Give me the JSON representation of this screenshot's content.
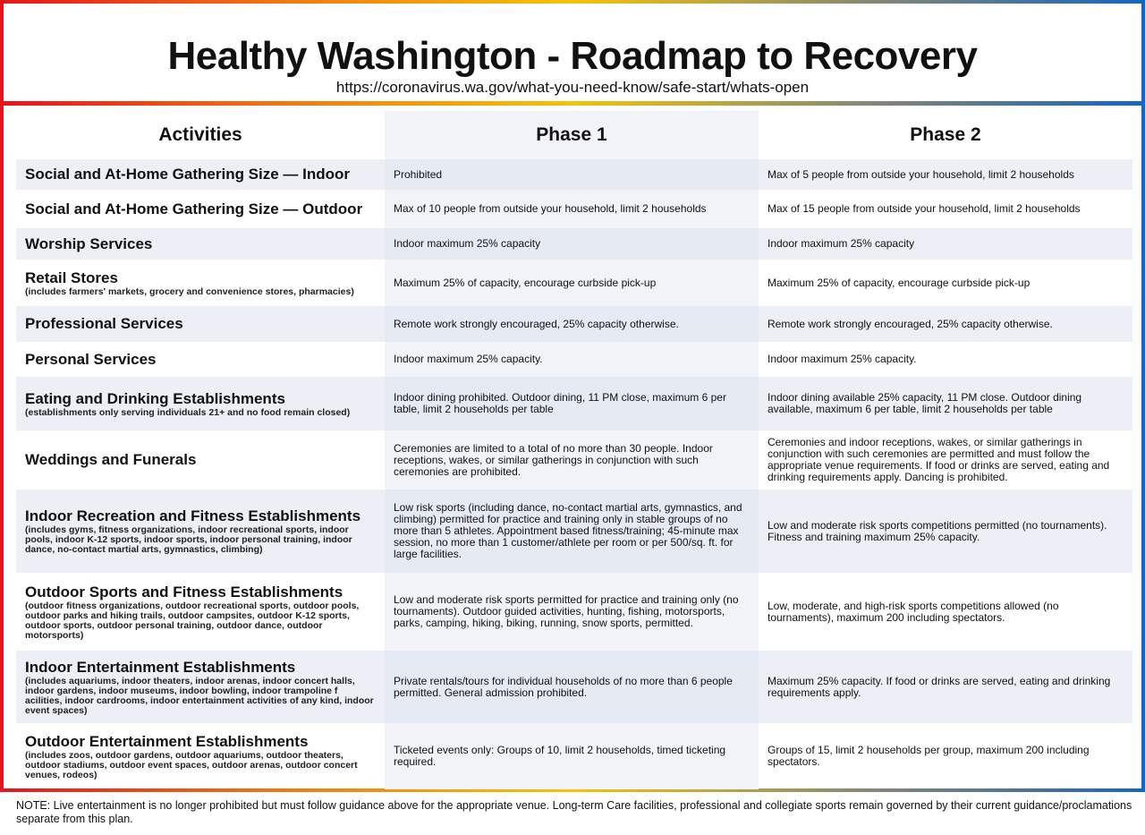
{
  "header": {
    "title": "Healthy Washington - Roadmap to Recovery",
    "url": "https://coronavirus.wa.gov/what-you-need-know/safe-start/whats-open"
  },
  "columns": [
    "Activities",
    "Phase 1",
    "Phase 2"
  ],
  "rows": [
    {
      "activity": "Social and At-Home Gathering Size — Indoor",
      "sub": "",
      "phase1": "Prohibited",
      "phase2": "Max of 5 people from outside your household, limit 2 households"
    },
    {
      "activity": "Social and At-Home Gathering Size — Outdoor",
      "sub": "",
      "phase1": "Max of 10 people from outside your household, limit 2 households",
      "phase2": "Max of 15 people from outside your household, limit 2 households"
    },
    {
      "activity": "Worship Services",
      "sub": "",
      "phase1": "Indoor maximum 25% capacity",
      "phase2": "Indoor maximum 25% capacity"
    },
    {
      "activity": "Retail Stores",
      "sub": "(includes farmers' markets, grocery and convenience stores, pharmacies)",
      "phase1": "Maximum 25% of capacity, encourage curbside pick-up",
      "phase2": "Maximum 25% of capacity, encourage curbside pick-up"
    },
    {
      "activity": "Professional Services",
      "sub": "",
      "phase1": "Remote work strongly encouraged, 25% capacity otherwise.",
      "phase2": "Remote work strongly encouraged, 25% capacity otherwise."
    },
    {
      "activity": "Personal Services",
      "sub": "",
      "phase1": "Indoor maximum 25% capacity.",
      "phase2": "Indoor maximum 25% capacity."
    },
    {
      "activity": "Eating and Drinking Establishments",
      "sub": "(establishments only serving individuals 21+ and no food remain closed)",
      "phase1": "Indoor dining prohibited. Outdoor dining, 11 PM close, maximum 6 per table, limit 2 households per table",
      "phase2": "Indoor dining available 25% capacity, 11 PM close. Outdoor dining available,  maximum 6 per table, limit 2 households per table"
    },
    {
      "activity": "Weddings and Funerals",
      "sub": "",
      "phase1": "Ceremonies are limited to a total of no more than 30 people. Indoor receptions, wakes, or similar gatherings in conjunction with such ceremonies are prohibited.",
      "phase2": "Ceremonies and indoor receptions, wakes, or similar gatherings in conjunction with such ceremonies are permitted and must follow the appropriate venue requirements. If food or drinks are served, eating and drinking requirements apply. Dancing is prohibited."
    },
    {
      "activity": "Indoor Recreation and Fitness Establishments",
      "sub": "(includes gyms, fitness organizations, indoor recreational sports, indoor pools, indoor K-12 sports, indoor sports, indoor personal training, indoor dance, no-contact martial arts, gymnastics, climbing)",
      "phase1": "Low risk sports (including dance, no-contact martial arts, gymnastics, and climbing) permitted for practice and training only in stable groups of no more than 5 athletes. Appointment based fitness/training; 45-minute max session, no more than 1 customer/athlete per room or per 500/sq. ft. for large facilities.",
      "phase2": "Low and moderate risk sports competitions permitted (no tournaments). Fitness and training maximum 25% capacity."
    },
    {
      "activity": "Outdoor Sports and Fitness Establishments",
      "sub": "(outdoor fitness organizations, outdoor recreational sports, outdoor pools, outdoor parks and hiking trails, outdoor campsites, outdoor K-12 sports, outdoor sports, outdoor personal training, outdoor dance, outdoor motorsports)",
      "phase1": "Low and moderate risk sports permitted for practice and training only (no tournaments). Outdoor guided activities, hunting, fishing, motorsports, parks, camping, hiking, biking, running, snow sports, permitted.",
      "phase2": "Low, moderate, and high-risk sports competitions allowed (no tournaments), maximum 200 including spectators."
    },
    {
      "activity": "Indoor Entertainment Establishments",
      "sub": "(includes aquariums, indoor theaters, indoor arenas, indoor concert halls, indoor gardens, indoor museums, indoor bowling, indoor trampoline f acilities, indoor cardrooms, indoor entertainment activities of any kind, indoor event spaces)",
      "phase1": "Private rentals/tours for individual households of no more than 6 people permitted. General admission prohibited.",
      "phase2": "Maximum 25% capacity. If food or drinks are served, eating and drinking requirements apply."
    },
    {
      "activity": "Outdoor Entertainment Establishments",
      "sub": "(includes zoos, outdoor gardens, outdoor aquariums, outdoor theaters, outdoor stadiums, outdoor event spaces, outdoor arenas, outdoor concert venues, rodeos)",
      "phase1": "Ticketed events only: Groups of 10, limit 2 households, timed ticketing required.",
      "phase2": "Groups of 15, limit 2 households per group, maximum 200 including spectators."
    }
  ],
  "note": "NOTE: Live entertainment is no longer prohibited but must follow guidance above for the appropriate venue. Long-term Care facilities, professional and collegiate sports remain governed by their current guidance/proclamations separate from this plan.",
  "colors": {
    "border_start": "#e8141b",
    "border_mid": "#f5c20a",
    "border_end": "#1565c0"
  }
}
